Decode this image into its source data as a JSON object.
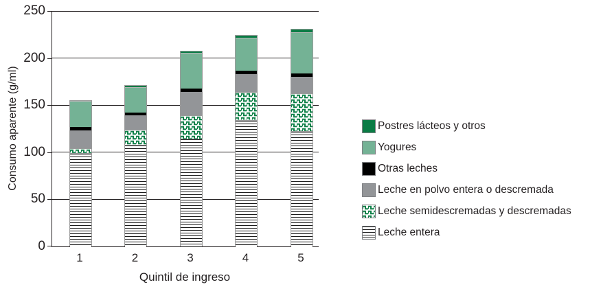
{
  "chart_data": {
    "type": "bar",
    "stacked": true,
    "xlabel": "Quintil de ingreso",
    "ylabel": "Consumo aparente (g/ml)",
    "categories": [
      "1",
      "2",
      "3",
      "4",
      "5"
    ],
    "ylim": [
      0,
      250
    ],
    "yticks": [
      0,
      50,
      100,
      150,
      200,
      250
    ],
    "grid": true,
    "legend_position": "right",
    "series": [
      {
        "name": "Leche entera",
        "style": "hlines",
        "color": "#1a1a1a",
        "values": [
          100,
          108.5,
          115,
          135,
          123
        ]
      },
      {
        "name": "Leche semidescremadas y descremadas",
        "style": "wave",
        "color": "#0f8048",
        "values": [
          5,
          16,
          25,
          29.5,
          40.5
        ]
      },
      {
        "name": "Leche en polvo entera o descremada",
        "style": "solid",
        "color": "#939598",
        "values": [
          19,
          15.5,
          24.5,
          19.5,
          17
        ]
      },
      {
        "name": "Otras leches",
        "style": "solid",
        "color": "#000000",
        "values": [
          3.5,
          3,
          4,
          3.5,
          4
        ]
      },
      {
        "name": "Yogures",
        "style": "solid",
        "color": "#74b295",
        "values": [
          27,
          26,
          37,
          34,
          43
        ]
      },
      {
        "name": "Postres lácteos y otros",
        "style": "solid",
        "color": "#0a7c45",
        "values": [
          1,
          2.5,
          2.5,
          3,
          3.5
        ]
      }
    ],
    "totals": [
      155.5,
      171.5,
      208,
      224.5,
      231
    ],
    "axis_color": "#231f20"
  }
}
